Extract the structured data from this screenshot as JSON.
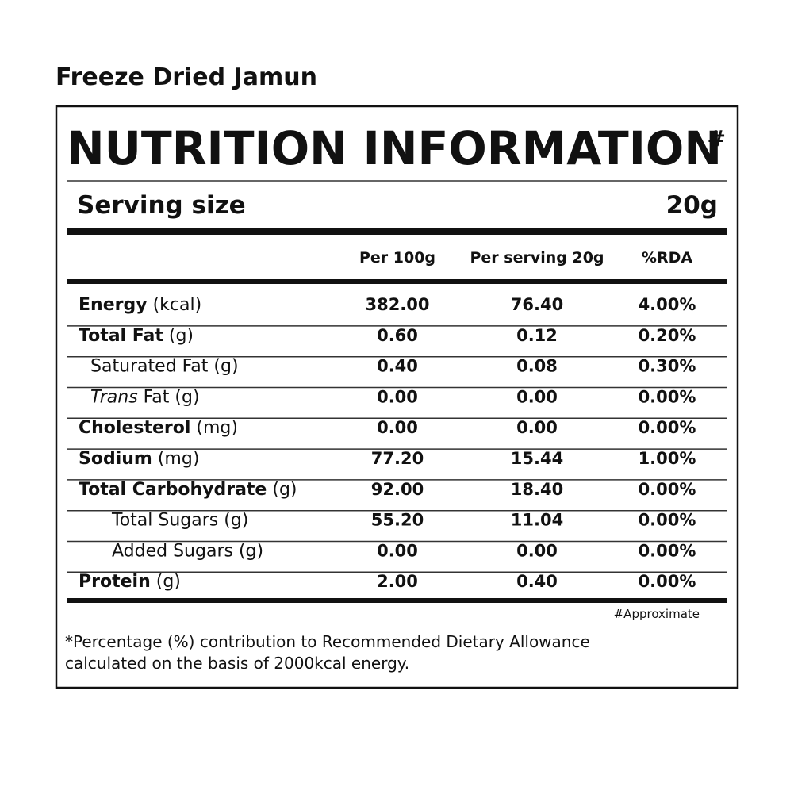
{
  "product_title": "Freeze Dried Jamun",
  "panel": {
    "heading": "NUTRITION INFORMATION",
    "heading_mark": "#",
    "serving": {
      "label": "Serving size",
      "value": "20g"
    },
    "columns": [
      "Per 100g",
      "Per serving 20g",
      "%RDA"
    ],
    "rows": [
      {
        "indent": 0,
        "label": [
          {
            "text": "Energy",
            "style": "bold"
          },
          {
            "text": "(kcal)"
          }
        ],
        "values": [
          "382.00",
          "76.40",
          "4.00%"
        ]
      },
      {
        "indent": 0,
        "label": [
          {
            "text": "Total Fat",
            "style": "bold"
          },
          {
            "text": "(g)"
          }
        ],
        "values": [
          "0.60",
          "0.12",
          "0.20%"
        ]
      },
      {
        "indent": 1,
        "label": [
          {
            "text": "Saturated Fat (g)"
          }
        ],
        "values": [
          "0.40",
          "0.08",
          "0.30%"
        ]
      },
      {
        "indent": 1,
        "label": [
          {
            "text": "Trans",
            "style": "italic"
          },
          {
            "text": "Fat (g)"
          }
        ],
        "values": [
          "0.00",
          "0.00",
          "0.00%"
        ]
      },
      {
        "indent": 0,
        "label": [
          {
            "text": "Cholesterol",
            "style": "bold"
          },
          {
            "text": "(mg)"
          }
        ],
        "values": [
          "0.00",
          "0.00",
          "0.00%"
        ]
      },
      {
        "indent": 0,
        "label": [
          {
            "text": "Sodium",
            "style": "bold"
          },
          {
            "text": "(mg)"
          }
        ],
        "values": [
          "77.20",
          "15.44",
          "1.00%"
        ]
      },
      {
        "indent": 0,
        "label": [
          {
            "text": "Total Carbohydrate",
            "style": "bold"
          },
          {
            "text": "(g)"
          }
        ],
        "values": [
          "92.00",
          "18.40",
          "0.00%"
        ]
      },
      {
        "indent": 2,
        "label": [
          {
            "text": "Total Sugars (g)"
          }
        ],
        "values": [
          "55.20",
          "11.04",
          "0.00%"
        ]
      },
      {
        "indent": 2,
        "label": [
          {
            "text": "Added Sugars (g)"
          }
        ],
        "values": [
          "0.00",
          "0.00",
          "0.00%"
        ]
      },
      {
        "indent": 0,
        "label": [
          {
            "text": "Protein",
            "style": "bold"
          },
          {
            "text": "(g)"
          }
        ],
        "values": [
          "2.00",
          "0.40",
          "0.00%"
        ]
      }
    ],
    "approx_note": "#Approximate",
    "footnote": [
      "*Percentage (%) contribution to Recommended Dietary Allowance",
      "calculated on the basis of 2000kcal energy."
    ]
  }
}
